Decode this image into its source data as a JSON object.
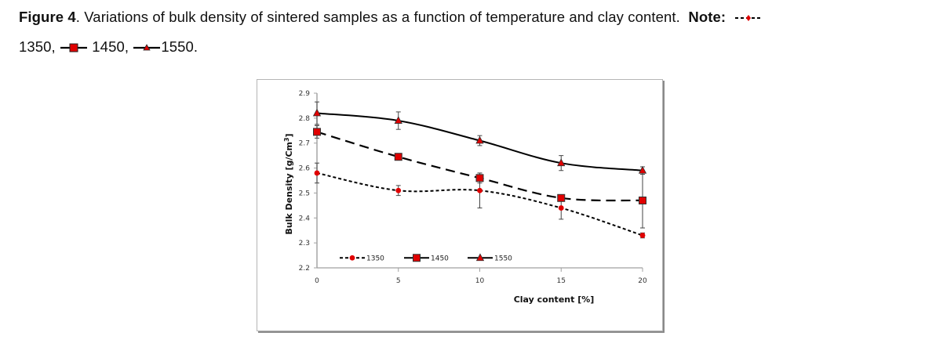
{
  "caption": {
    "figure_label": "Figure 4",
    "text": ". Variations of bulk density of sintered samples as a function of temperature and clay content.",
    "note_label": "Note:",
    "legend_items": [
      "1350,",
      "1450,",
      "1550."
    ]
  },
  "colors": {
    "marker_fill": "#e00000",
    "line": "#000000",
    "axis": "#a0a0a0",
    "error_bar": "#444444"
  },
  "chart_data": {
    "type": "line",
    "title": "",
    "xlabel": "Clay content [%]",
    "ylabel": "Bulk Density [g/Cm3]",
    "ylabel_main": "Bulk Density [g/Cm",
    "ylabel_sup": "3",
    "ylabel_end": "]",
    "x": [
      0,
      5,
      10,
      15,
      20
    ],
    "xlim": [
      0,
      20
    ],
    "ylim": [
      2.2,
      2.9
    ],
    "xticks": [
      "0",
      "5",
      "10",
      "15",
      "20"
    ],
    "yticks": [
      "2.2",
      "2.3",
      "2.4",
      "2.5",
      "2.6",
      "2.7",
      "2.8",
      "2.9"
    ],
    "ytick_values": [
      2.2,
      2.3,
      2.4,
      2.5,
      2.6,
      2.7,
      2.8,
      2.9
    ],
    "grid": false,
    "legend_position": "bottom-left inside",
    "series": [
      {
        "name": "1350",
        "style": "short-dash",
        "marker": "diamond",
        "values": [
          2.58,
          2.51,
          2.51,
          2.44,
          2.33
        ],
        "errors": [
          0.04,
          0.02,
          0.07,
          0.045,
          0.01
        ]
      },
      {
        "name": "1450",
        "style": "long-dash",
        "marker": "square",
        "values": [
          2.745,
          2.645,
          2.56,
          2.48,
          2.47
        ],
        "errors": [
          0.025,
          0.005,
          0.02,
          0.005,
          0.11
        ]
      },
      {
        "name": "1550",
        "style": "solid",
        "marker": "triangle",
        "values": [
          2.82,
          2.79,
          2.71,
          2.62,
          2.59
        ],
        "errors": [
          0.045,
          0.035,
          0.02,
          0.03,
          0.015
        ]
      }
    ]
  }
}
